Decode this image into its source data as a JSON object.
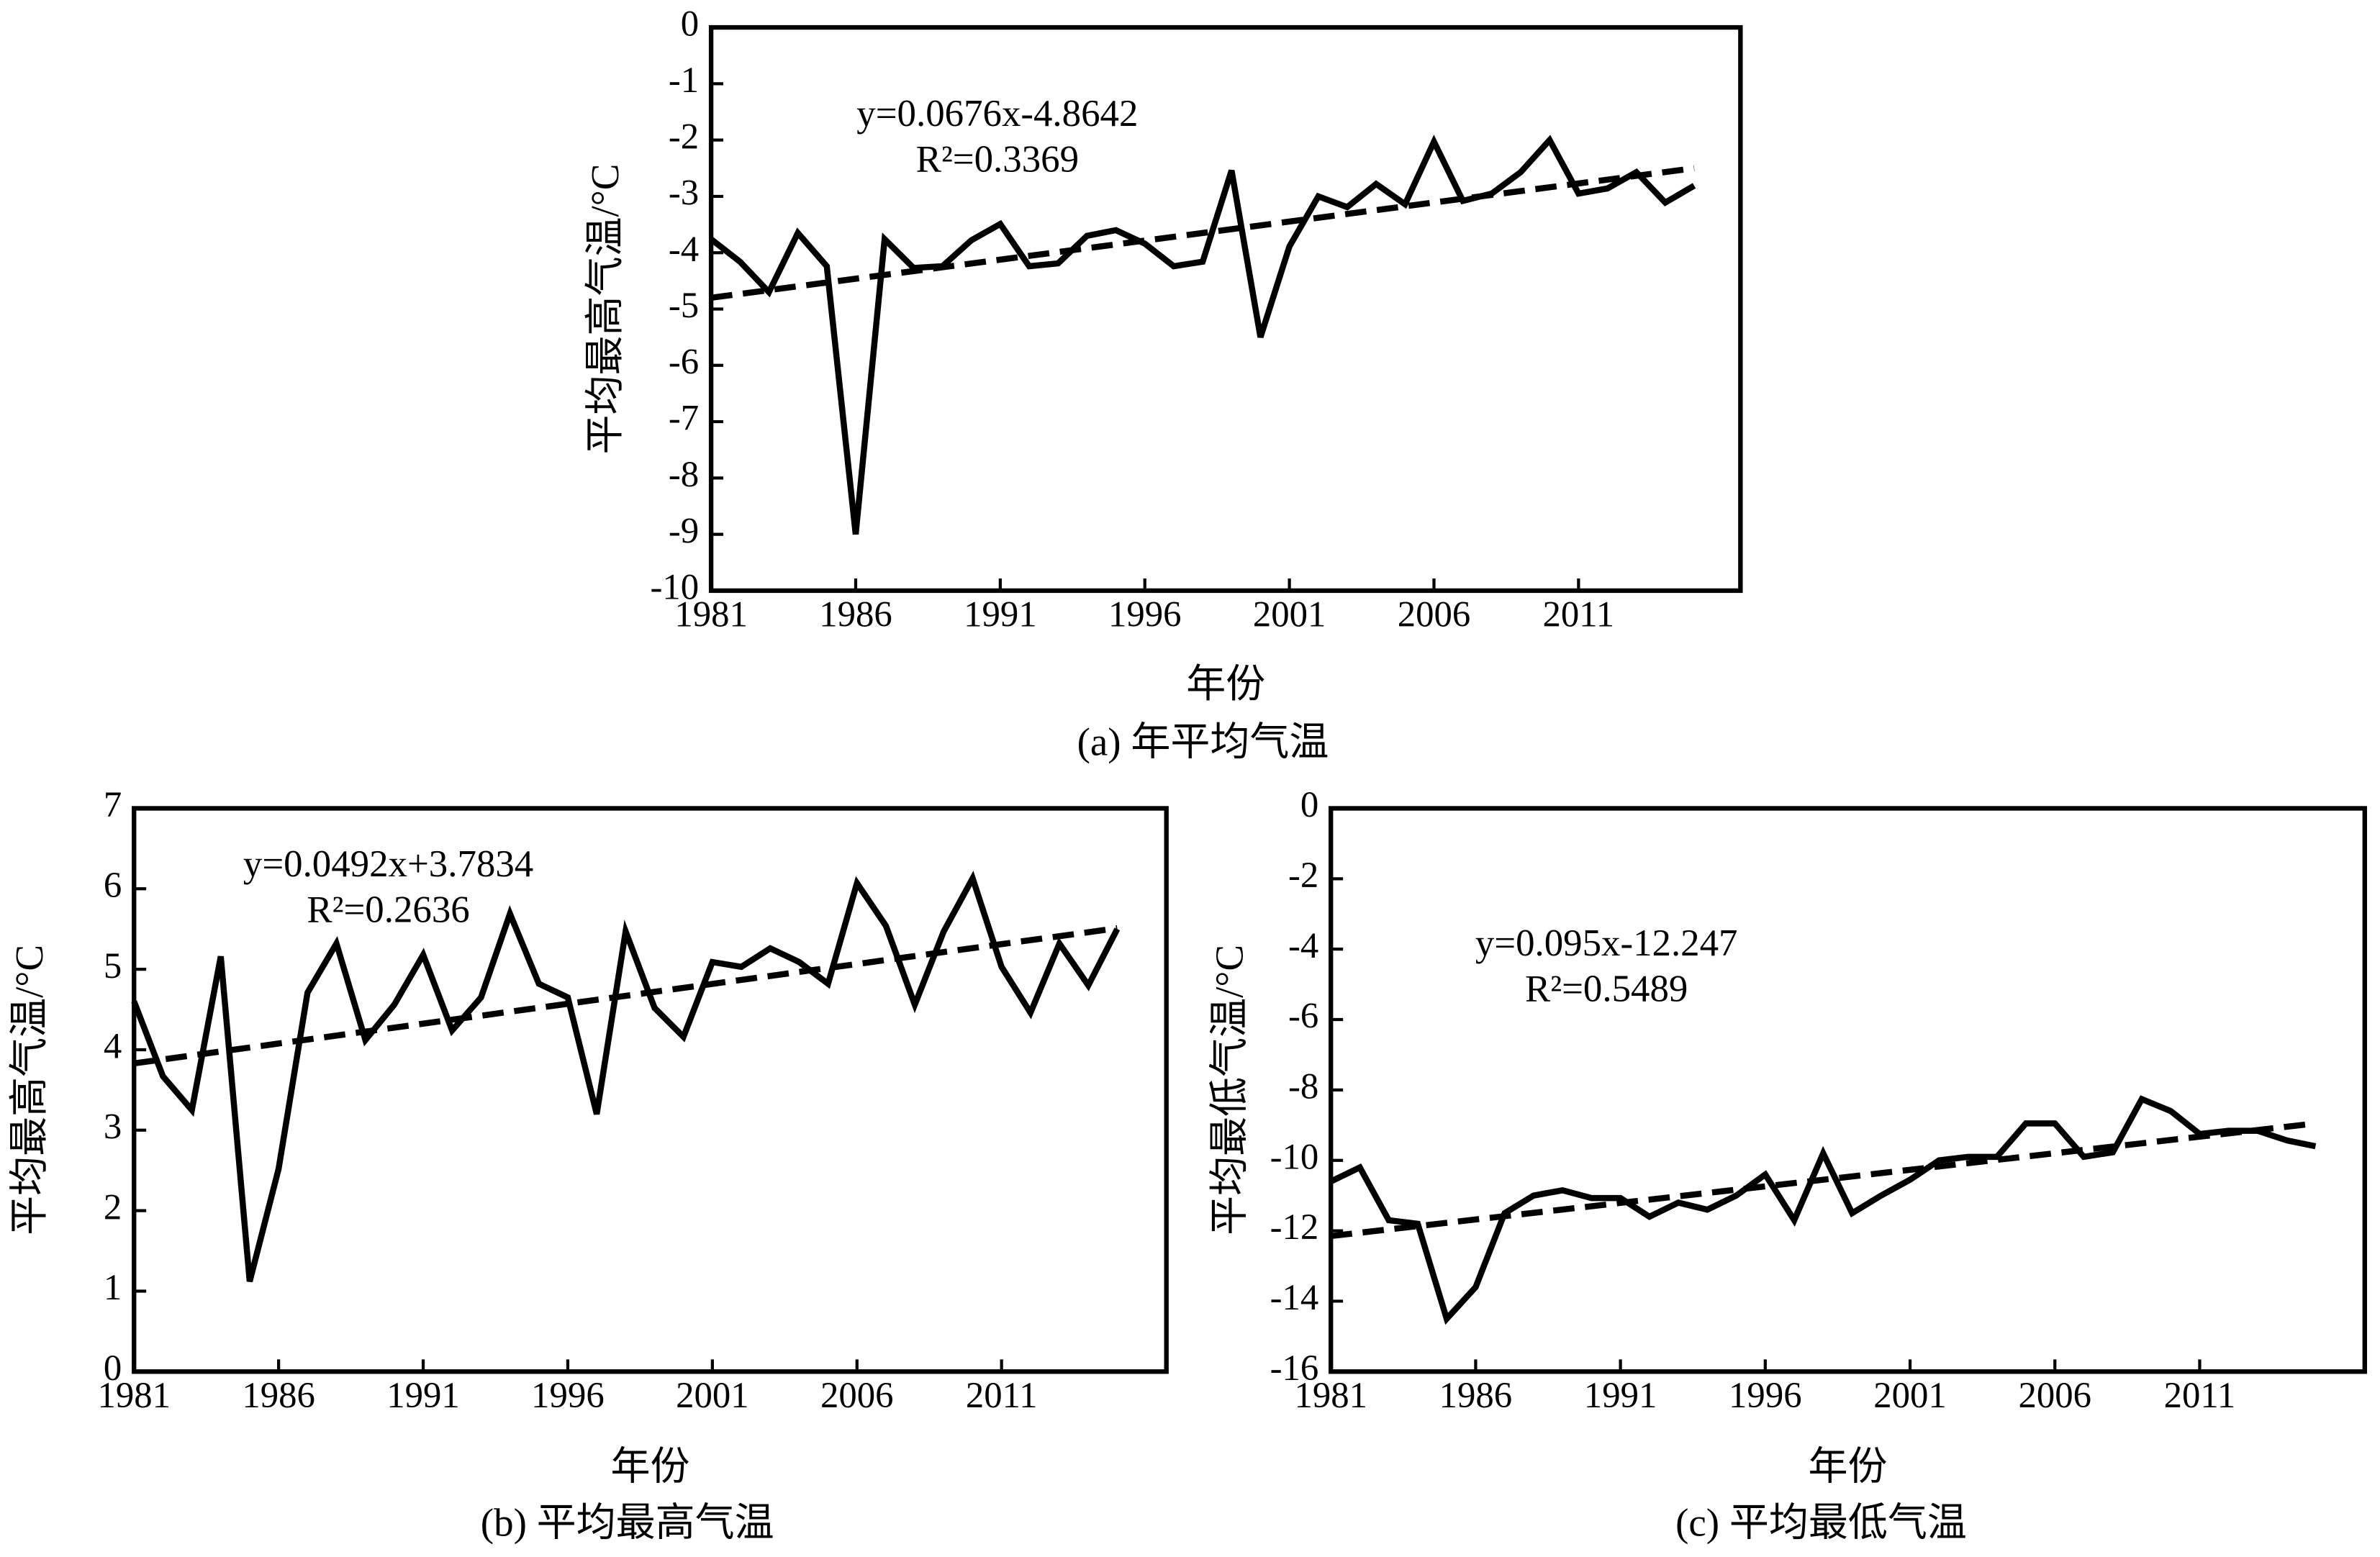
{
  "chart_data": [
    {
      "type": "line",
      "title": "(a) 年平均气温",
      "xlabel": "年份",
      "ylabel": "平均最高气温/°C",
      "x": [
        1981,
        1982,
        1983,
        1984,
        1985,
        1986,
        1987,
        1988,
        1989,
        1990,
        1991,
        1992,
        1993,
        1994,
        1995,
        1996,
        1997,
        1998,
        1999,
        2000,
        2001,
        2002,
        2003,
        2004,
        2005,
        2006,
        2007,
        2008,
        2009,
        2010,
        2011,
        2012,
        2013,
        2014,
        2015
      ],
      "xlim": [
        1981,
        2016.6
      ],
      "xticks": [
        1981,
        1986,
        1991,
        1996,
        2001,
        2006,
        2011
      ],
      "ylim": [
        -10,
        0
      ],
      "yticks": [
        0,
        -1,
        -2,
        -3,
        -4,
        -5,
        -6,
        -7,
        -8,
        -9,
        -10
      ],
      "series": [
        {
          "color": "#000000",
          "values": [
            -3.76,
            -4.16,
            -4.7,
            -3.65,
            -4.24,
            -9.0,
            -3.76,
            -4.27,
            -4.24,
            -3.78,
            -3.49,
            -4.24,
            -4.19,
            -3.7,
            -3.6,
            -3.84,
            -4.24,
            -4.16,
            -2.54,
            -5.5,
            -3.89,
            -3.0,
            -3.19,
            -2.78,
            -3.14,
            -2.03,
            -3.08,
            -2.95,
            -2.57,
            -2.0,
            -2.95,
            -2.86,
            -2.57,
            -3.11,
            -2.81
          ]
        },
        {
          "color": "#000000",
          "style": "dashed",
          "x": [
            1981,
            2015
          ],
          "values": [
            -4.8,
            -2.5
          ]
        }
      ],
      "annotations": [
        "y=0.0676x-4.8642",
        "R²=0.3369"
      ]
    },
    {
      "type": "line",
      "title": "(b) 平均最高气温",
      "xlabel": "年份",
      "ylabel": "平均最高气温/°C",
      "x": [
        1981,
        1982,
        1983,
        1984,
        1985,
        1986,
        1987,
        1988,
        1989,
        1990,
        1991,
        1992,
        1993,
        1994,
        1995,
        1996,
        1997,
        1998,
        1999,
        2000,
        2001,
        2002,
        2003,
        2004,
        2005,
        2006,
        2007,
        2008,
        2009,
        2010,
        2011,
        2012,
        2013,
        2014,
        2015
      ],
      "xlim": [
        1981,
        2016.7
      ],
      "xticks": [
        1981,
        1986,
        1991,
        1996,
        2001,
        2006,
        2011
      ],
      "ylim": [
        0,
        7
      ],
      "yticks": [
        0,
        1,
        2,
        3,
        4,
        5,
        6,
        7
      ],
      "series": [
        {
          "color": "#000000",
          "values": [
            4.6,
            3.67,
            3.25,
            5.16,
            1.12,
            2.52,
            4.71,
            5.32,
            4.12,
            4.56,
            5.18,
            4.24,
            4.65,
            5.69,
            4.82,
            4.65,
            3.2,
            5.47,
            4.52,
            4.16,
            5.09,
            5.03,
            5.26,
            5.09,
            4.82,
            6.07,
            5.54,
            4.56,
            5.47,
            6.13,
            5.03,
            4.46,
            5.32,
            4.8,
            5.5
          ]
        },
        {
          "color": "#000000",
          "style": "dashed",
          "x": [
            1981,
            2015
          ],
          "values": [
            3.83,
            5.51
          ]
        }
      ],
      "annotations": [
        "y=0.0492x+3.7834",
        "R²=0.2636"
      ]
    },
    {
      "type": "line",
      "title": "(c) 平均最低气温",
      "xlabel": "年份",
      "ylabel": "平均最低气温/°C",
      "x": [
        1981,
        1982,
        1983,
        1984,
        1985,
        1986,
        1987,
        1988,
        1989,
        1990,
        1991,
        1992,
        1993,
        1994,
        1995,
        1996,
        1997,
        1998,
        1999,
        2000,
        2001,
        2002,
        2003,
        2004,
        2005,
        2006,
        2007,
        2008,
        2009,
        2010,
        2011,
        2012,
        2013,
        2014,
        2015
      ],
      "xlim": [
        1981,
        2016.7
      ],
      "xticks": [
        1981,
        1986,
        1991,
        1996,
        2001,
        2006,
        2011
      ],
      "ylim": [
        -16,
        0
      ],
      "yticks": [
        0,
        -2,
        -4,
        -6,
        -8,
        -10,
        -12,
        -14,
        -16
      ],
      "series": [
        {
          "color": "#000000",
          "values": [
            -10.6,
            -10.2,
            -11.7,
            -11.8,
            -14.5,
            -13.6,
            -11.5,
            -11.0,
            -10.85,
            -11.07,
            -11.07,
            -11.6,
            -11.2,
            -11.4,
            -11.0,
            -10.4,
            -11.7,
            -9.8,
            -11.5,
            -11.0,
            -10.55,
            -10.0,
            -9.9,
            -9.9,
            -8.95,
            -8.95,
            -9.9,
            -9.77,
            -8.26,
            -8.6,
            -9.25,
            -9.16,
            -9.16,
            -9.43,
            -9.6
          ]
        },
        {
          "color": "#000000",
          "style": "dashed",
          "x": [
            1981,
            2015
          ],
          "values": [
            -12.15,
            -8.95
          ]
        }
      ],
      "annotations": [
        "y=0.095x-12.247",
        "R²=0.5489"
      ]
    }
  ]
}
